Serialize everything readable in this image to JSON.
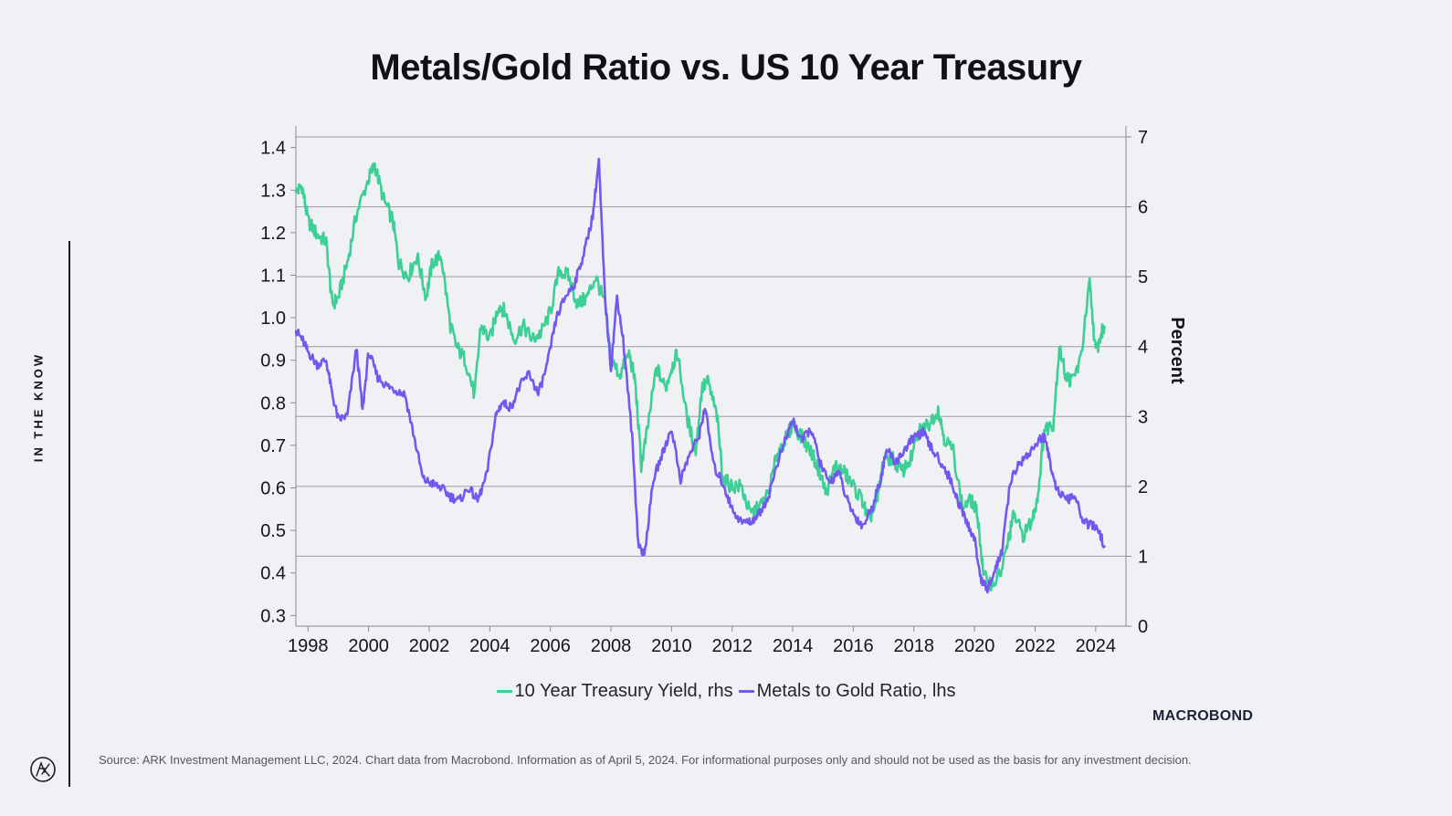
{
  "side_label": "IN THE KNOW",
  "brand": {
    "macrobond_logo": "MACROBOND",
    "ark_logo_icon": "ark-logo-icon"
  },
  "source": "Source: ARK Investment Management LLC, 2024. Chart data from Macrobond. Information as of April 5, 2024. For informational purposes only and should not be used as the basis for any investment decision.",
  "colors": {
    "background": "#f0f1f5",
    "treasury": "#3dcf96",
    "metals": "#7358f0",
    "grid": "#9a9aa2",
    "text": "#14141c"
  },
  "chart_data": {
    "type": "line",
    "title": "Metals/Gold Ratio vs. US 10 Year Treasury",
    "xlabel": "",
    "ylabel_left": "",
    "ylabel_right": "Percent",
    "xlim": [
      1997.6,
      2025.0
    ],
    "ylim_left": [
      0.275,
      1.425
    ],
    "ylim_right": [
      0,
      7
    ],
    "x_ticks": [
      1998,
      2000,
      2002,
      2004,
      2006,
      2008,
      2010,
      2012,
      2014,
      2016,
      2018,
      2020,
      2022,
      2024
    ],
    "x_tick_labels": [
      "1998",
      "2000",
      "2002",
      "2004",
      "2006",
      "2008",
      "2010",
      "2012",
      "2014",
      "2016",
      "2018",
      "2020",
      "2022",
      "2024"
    ],
    "y_left_ticks": [
      1.4,
      1.3,
      1.2,
      1.1,
      1.0,
      0.9,
      0.8,
      0.7,
      0.6,
      0.5,
      0.4,
      0.3
    ],
    "y_left_tick_labels": [
      "1.4",
      "1.3",
      "1.2",
      "1.1",
      "1.0",
      "0.9",
      "0.8",
      "0.7",
      "0.6",
      "0.5",
      "0.4",
      "0.3"
    ],
    "y_right_ticks": [
      7,
      6,
      5,
      4,
      3,
      2,
      1,
      0
    ],
    "y_right_tick_labels": [
      "7",
      "6",
      "5",
      "4",
      "3",
      "2",
      "1",
      "0"
    ],
    "grid": "horizontal at right-axis ticks",
    "legend_position": "bottom-center",
    "series": [
      {
        "name": "10 Year Treasury Yield, rhs",
        "axis": "right",
        "color": "#3dcf96",
        "points": [
          [
            1997.6,
            6.2
          ],
          [
            1997.8,
            6.3
          ],
          [
            1998.0,
            5.8
          ],
          [
            1998.3,
            5.6
          ],
          [
            1998.6,
            5.5
          ],
          [
            1998.8,
            4.6
          ],
          [
            1999.0,
            4.7
          ],
          [
            1999.3,
            5.2
          ],
          [
            1999.6,
            5.9
          ],
          [
            2000.0,
            6.4
          ],
          [
            2000.2,
            6.6
          ],
          [
            2000.5,
            6.1
          ],
          [
            2000.8,
            5.8
          ],
          [
            2001.0,
            5.2
          ],
          [
            2001.3,
            5.0
          ],
          [
            2001.6,
            5.3
          ],
          [
            2001.9,
            4.7
          ],
          [
            2002.1,
            5.2
          ],
          [
            2002.4,
            5.3
          ],
          [
            2002.7,
            4.3
          ],
          [
            2002.9,
            4.0
          ],
          [
            2003.2,
            3.8
          ],
          [
            2003.5,
            3.3
          ],
          [
            2003.7,
            4.3
          ],
          [
            2004.0,
            4.1
          ],
          [
            2004.3,
            4.6
          ],
          [
            2004.5,
            4.5
          ],
          [
            2004.8,
            4.1
          ],
          [
            2005.1,
            4.3
          ],
          [
            2005.4,
            4.1
          ],
          [
            2005.7,
            4.2
          ],
          [
            2006.0,
            4.5
          ],
          [
            2006.3,
            5.1
          ],
          [
            2006.6,
            5.0
          ],
          [
            2006.9,
            4.6
          ],
          [
            2007.2,
            4.7
          ],
          [
            2007.5,
            5.0
          ],
          [
            2007.8,
            4.6
          ],
          [
            2008.0,
            3.8
          ],
          [
            2008.3,
            3.6
          ],
          [
            2008.6,
            3.9
          ],
          [
            2008.8,
            3.5
          ],
          [
            2009.0,
            2.3
          ],
          [
            2009.2,
            2.8
          ],
          [
            2009.5,
            3.7
          ],
          [
            2009.8,
            3.4
          ],
          [
            2010.0,
            3.7
          ],
          [
            2010.2,
            3.9
          ],
          [
            2010.5,
            3.0
          ],
          [
            2010.8,
            2.5
          ],
          [
            2011.0,
            3.4
          ],
          [
            2011.2,
            3.5
          ],
          [
            2011.5,
            3.0
          ],
          [
            2011.7,
            2.1
          ],
          [
            2012.0,
            2.0
          ],
          [
            2012.3,
            2.0
          ],
          [
            2012.6,
            1.6
          ],
          [
            2012.9,
            1.7
          ],
          [
            2013.2,
            1.9
          ],
          [
            2013.5,
            2.5
          ],
          [
            2013.8,
            2.7
          ],
          [
            2014.0,
            2.9
          ],
          [
            2014.3,
            2.7
          ],
          [
            2014.6,
            2.5
          ],
          [
            2014.9,
            2.2
          ],
          [
            2015.1,
            1.9
          ],
          [
            2015.4,
            2.3
          ],
          [
            2015.7,
            2.2
          ],
          [
            2016.0,
            2.0
          ],
          [
            2016.3,
            1.8
          ],
          [
            2016.5,
            1.5
          ],
          [
            2016.8,
            1.8
          ],
          [
            2017.0,
            2.4
          ],
          [
            2017.3,
            2.4
          ],
          [
            2017.6,
            2.2
          ],
          [
            2017.9,
            2.4
          ],
          [
            2018.2,
            2.8
          ],
          [
            2018.5,
            2.9
          ],
          [
            2018.8,
            3.1
          ],
          [
            2019.0,
            2.7
          ],
          [
            2019.3,
            2.5
          ],
          [
            2019.6,
            1.7
          ],
          [
            2019.9,
            1.8
          ],
          [
            2020.1,
            1.6
          ],
          [
            2020.3,
            0.7
          ],
          [
            2020.6,
            0.6
          ],
          [
            2020.9,
            0.8
          ],
          [
            2021.1,
            1.2
          ],
          [
            2021.3,
            1.6
          ],
          [
            2021.6,
            1.3
          ],
          [
            2021.9,
            1.5
          ],
          [
            2022.1,
            1.9
          ],
          [
            2022.3,
            2.8
          ],
          [
            2022.6,
            2.9
          ],
          [
            2022.8,
            4.0
          ],
          [
            2023.0,
            3.6
          ],
          [
            2023.2,
            3.5
          ],
          [
            2023.5,
            3.8
          ],
          [
            2023.8,
            4.9
          ],
          [
            2024.0,
            3.9
          ],
          [
            2024.2,
            4.2
          ],
          [
            2024.3,
            4.3
          ]
        ]
      },
      {
        "name": "Metals to Gold Ratio, lhs",
        "axis": "left",
        "color": "#7358f0",
        "points": [
          [
            1997.6,
            0.97
          ],
          [
            1997.8,
            0.95
          ],
          [
            1998.0,
            0.92
          ],
          [
            1998.3,
            0.89
          ],
          [
            1998.6,
            0.9
          ],
          [
            1998.8,
            0.82
          ],
          [
            1999.0,
            0.76
          ],
          [
            1999.3,
            0.77
          ],
          [
            1999.6,
            0.93
          ],
          [
            1999.8,
            0.78
          ],
          [
            2000.0,
            0.92
          ],
          [
            2000.3,
            0.86
          ],
          [
            2000.6,
            0.84
          ],
          [
            2000.9,
            0.83
          ],
          [
            2001.2,
            0.82
          ],
          [
            2001.5,
            0.72
          ],
          [
            2001.8,
            0.62
          ],
          [
            2002.1,
            0.61
          ],
          [
            2002.4,
            0.6
          ],
          [
            2002.7,
            0.58
          ],
          [
            2003.0,
            0.57
          ],
          [
            2003.3,
            0.6
          ],
          [
            2003.6,
            0.57
          ],
          [
            2003.9,
            0.63
          ],
          [
            2004.2,
            0.77
          ],
          [
            2004.4,
            0.8
          ],
          [
            2004.7,
            0.79
          ],
          [
            2005.0,
            0.84
          ],
          [
            2005.3,
            0.87
          ],
          [
            2005.6,
            0.82
          ],
          [
            2005.9,
            0.89
          ],
          [
            2006.2,
            1.0
          ],
          [
            2006.5,
            1.05
          ],
          [
            2006.8,
            1.08
          ],
          [
            2007.1,
            1.15
          ],
          [
            2007.4,
            1.24
          ],
          [
            2007.6,
            1.37
          ],
          [
            2007.8,
            1.05
          ],
          [
            2008.0,
            0.88
          ],
          [
            2008.2,
            1.05
          ],
          [
            2008.4,
            0.95
          ],
          [
            2008.7,
            0.72
          ],
          [
            2008.9,
            0.47
          ],
          [
            2009.1,
            0.44
          ],
          [
            2009.4,
            0.62
          ],
          [
            2009.7,
            0.68
          ],
          [
            2010.0,
            0.74
          ],
          [
            2010.3,
            0.62
          ],
          [
            2010.6,
            0.68
          ],
          [
            2010.9,
            0.72
          ],
          [
            2011.1,
            0.79
          ],
          [
            2011.4,
            0.65
          ],
          [
            2011.7,
            0.61
          ],
          [
            2012.0,
            0.55
          ],
          [
            2012.3,
            0.52
          ],
          [
            2012.6,
            0.52
          ],
          [
            2012.9,
            0.54
          ],
          [
            2013.2,
            0.58
          ],
          [
            2013.5,
            0.66
          ],
          [
            2013.8,
            0.72
          ],
          [
            2014.0,
            0.76
          ],
          [
            2014.3,
            0.71
          ],
          [
            2014.6,
            0.74
          ],
          [
            2014.9,
            0.66
          ],
          [
            2015.2,
            0.61
          ],
          [
            2015.5,
            0.64
          ],
          [
            2015.8,
            0.57
          ],
          [
            2016.0,
            0.54
          ],
          [
            2016.3,
            0.51
          ],
          [
            2016.6,
            0.55
          ],
          [
            2016.9,
            0.62
          ],
          [
            2017.1,
            0.69
          ],
          [
            2017.4,
            0.66
          ],
          [
            2017.7,
            0.69
          ],
          [
            2018.0,
            0.72
          ],
          [
            2018.3,
            0.73
          ],
          [
            2018.6,
            0.69
          ],
          [
            2018.9,
            0.66
          ],
          [
            2019.2,
            0.62
          ],
          [
            2019.5,
            0.56
          ],
          [
            2019.8,
            0.51
          ],
          [
            2020.0,
            0.48
          ],
          [
            2020.2,
            0.39
          ],
          [
            2020.4,
            0.36
          ],
          [
            2020.7,
            0.41
          ],
          [
            2020.9,
            0.45
          ],
          [
            2021.2,
            0.62
          ],
          [
            2021.5,
            0.66
          ],
          [
            2021.8,
            0.68
          ],
          [
            2022.1,
            0.71
          ],
          [
            2022.3,
            0.72
          ],
          [
            2022.5,
            0.66
          ],
          [
            2022.7,
            0.6
          ],
          [
            2023.0,
            0.57
          ],
          [
            2023.3,
            0.58
          ],
          [
            2023.6,
            0.52
          ],
          [
            2023.9,
            0.51
          ],
          [
            2024.1,
            0.5
          ],
          [
            2024.3,
            0.46
          ]
        ]
      }
    ]
  }
}
